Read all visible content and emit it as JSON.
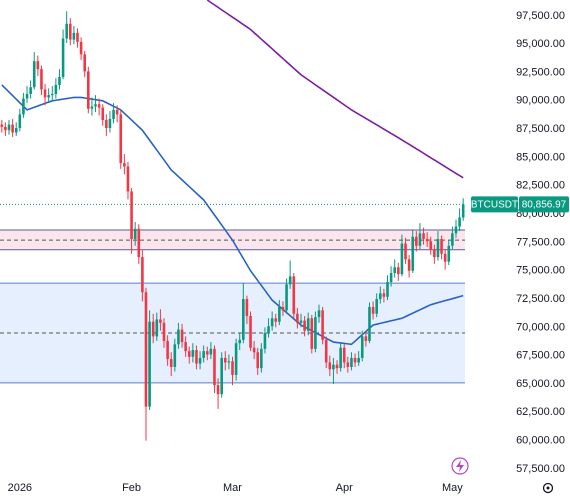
{
  "chart_data": {
    "type": "candlestick",
    "categories": [
      null,
      null,
      null,
      null,
      null,
      "2026",
      null,
      null,
      null,
      null,
      null,
      null,
      null,
      null,
      null,
      null,
      null,
      null,
      null,
      null,
      null,
      null,
      null,
      null,
      null,
      null,
      null,
      null,
      null,
      null,
      null,
      null,
      null,
      null,
      null,
      null,
      "Feb",
      null,
      null,
      null,
      null,
      null,
      null,
      null,
      null,
      null,
      null,
      null,
      null,
      null,
      null,
      null,
      null,
      null,
      null,
      null,
      null,
      null,
      null,
      null,
      null,
      null,
      null,
      null,
      "Mar",
      null,
      null,
      null,
      null,
      null,
      null,
      null,
      null,
      null,
      null,
      null,
      null,
      null,
      null,
      null,
      null,
      null,
      null,
      null,
      null,
      null,
      null,
      null,
      null,
      null,
      null,
      null,
      null,
      null,
      null,
      "Apr",
      null,
      null,
      null,
      null,
      null,
      null,
      null,
      null,
      null,
      null,
      null,
      null,
      null,
      null,
      null,
      null,
      null,
      null,
      null,
      null,
      null,
      null,
      null,
      null,
      null,
      null,
      null,
      null,
      null,
      "May",
      null,
      null,
      null
    ],
    "open": [
      87900,
      87700,
      87400,
      87900,
      87200,
      87600,
      88800,
      90200,
      90600,
      91200,
      93500,
      92800,
      91000,
      90300,
      90500,
      90600,
      91400,
      92100,
      95500,
      96800,
      95400,
      96000,
      95200,
      94100,
      92600,
      89300,
      89500,
      89700,
      89400,
      88300,
      87600,
      88400,
      89200,
      88800,
      84500,
      84200,
      82000,
      77800,
      78700,
      76200,
      73100,
      63000,
      70500,
      69200,
      70700,
      70400,
      68800,
      67200,
      66500,
      68500,
      69800,
      68700,
      67900,
      67400,
      68000,
      66800,
      67300,
      67900,
      67600,
      68100,
      64900,
      64100,
      67300,
      66900,
      67000,
      65800,
      68600,
      68900,
      72500,
      71000,
      68200,
      67800,
      66400,
      68100,
      69500,
      70100,
      70800,
      70500,
      71800,
      71500,
      73800,
      74500,
      71200,
      70400,
      70600,
      69700,
      70800,
      68100,
      70900,
      71500,
      68900,
      66900,
      66300,
      66700,
      66400,
      68200,
      66900,
      66500,
      67300,
      66900,
      67300,
      69200,
      68800,
      71800,
      71200,
      72500,
      73000,
      72700,
      74000,
      74800,
      75300,
      74700,
      77400,
      76000,
      75000,
      78000,
      77200,
      78300,
      77800,
      77600,
      76900,
      76200,
      77800,
      76500,
      75800,
      77200,
      78300,
      78900,
      79700
    ],
    "high": [
      88300,
      88100,
      88300,
      88400,
      88100,
      89300,
      90700,
      91300,
      91800,
      94300,
      94000,
      93100,
      91500,
      91100,
      91300,
      92000,
      92800,
      96300,
      97900,
      97300,
      96600,
      96400,
      95600,
      94400,
      93000,
      90300,
      90500,
      90200,
      89700,
      88800,
      89100,
      89800,
      89600,
      89100,
      85300,
      84600,
      82300,
      79300,
      79100,
      76800,
      73500,
      71500,
      71200,
      71300,
      71600,
      70800,
      69300,
      67800,
      69000,
      70400,
      70300,
      69200,
      68300,
      68600,
      68400,
      67900,
      68400,
      68300,
      68700,
      68400,
      65500,
      67800,
      67900,
      67600,
      67400,
      69000,
      69500,
      73900,
      72800,
      71400,
      68800,
      68200,
      68600,
      70000,
      70800,
      71400,
      71200,
      72400,
      72300,
      74300,
      75900,
      74800,
      71700,
      71200,
      71000,
      71300,
      71100,
      71400,
      72000,
      71800,
      69200,
      67500,
      67300,
      67100,
      68700,
      68500,
      67400,
      67800,
      67700,
      67900,
      69700,
      69600,
      72200,
      72300,
      73000,
      73600,
      73400,
      74600,
      75400,
      76000,
      75700,
      78200,
      77900,
      76400,
      78600,
      78500,
      79200,
      78800,
      78400,
      78000,
      77300,
      78500,
      78100,
      76900,
      77700,
      78900,
      79500,
      80500,
      81400
    ],
    "low": [
      87200,
      86900,
      87000,
      86800,
      86900,
      87300,
      88500,
      89800,
      90200,
      91000,
      92200,
      90500,
      89600,
      89800,
      90000,
      90200,
      91000,
      91900,
      95100,
      94900,
      95000,
      94700,
      93600,
      92100,
      88900,
      88700,
      89000,
      88700,
      87800,
      86900,
      87200,
      88000,
      88100,
      84000,
      83500,
      81300,
      76500,
      77200,
      75600,
      72300,
      60000,
      62700,
      68600,
      68800,
      69700,
      68200,
      66600,
      65700,
      66100,
      68100,
      68200,
      67400,
      66800,
      66900,
      66300,
      66300,
      66900,
      67100,
      67200,
      64200,
      62800,
      63800,
      66200,
      66300,
      64900,
      65300,
      68000,
      68600,
      70300,
      67900,
      67200,
      65800,
      66000,
      67700,
      69100,
      69700,
      70000,
      70200,
      71000,
      71200,
      73400,
      70800,
      69900,
      70000,
      69200,
      69300,
      67700,
      67800,
      70400,
      68500,
      66400,
      65700,
      65000,
      65900,
      66100,
      66400,
      66000,
      66200,
      66500,
      66600,
      67000,
      68300,
      68600,
      70700,
      70900,
      72100,
      72200,
      72400,
      73600,
      74400,
      74100,
      74500,
      75600,
      74400,
      74800,
      76700,
      76900,
      77300,
      77100,
      76400,
      75600,
      75900,
      76000,
      75100,
      75500,
      76900,
      77900,
      78500,
      79400
    ],
    "close": [
      87700,
      87400,
      87900,
      87200,
      87600,
      88800,
      90200,
      90600,
      91200,
      93500,
      92800,
      91000,
      90300,
      90500,
      90600,
      91400,
      92100,
      95500,
      96800,
      95400,
      96000,
      95200,
      94100,
      92600,
      89300,
      89500,
      89700,
      89400,
      88300,
      87600,
      88400,
      89200,
      88800,
      84500,
      84200,
      82000,
      77800,
      78700,
      76200,
      73100,
      63000,
      70500,
      69200,
      70700,
      70400,
      68800,
      67200,
      66500,
      68500,
      69800,
      68700,
      67900,
      67400,
      68000,
      66800,
      67300,
      67900,
      67600,
      68100,
      64900,
      64100,
      67300,
      66900,
      67000,
      65800,
      68600,
      68900,
      72500,
      71000,
      68200,
      67800,
      66400,
      68100,
      69500,
      70100,
      70800,
      70500,
      71800,
      71500,
      73800,
      74500,
      71200,
      70400,
      70600,
      69700,
      70800,
      68100,
      70900,
      71500,
      68900,
      66900,
      66300,
      66700,
      66400,
      68200,
      66900,
      66500,
      67300,
      66900,
      67300,
      69200,
      68800,
      71800,
      71200,
      72500,
      73000,
      72700,
      74000,
      74800,
      75300,
      74700,
      77400,
      76000,
      75000,
      78000,
      77200,
      78300,
      77800,
      77600,
      76900,
      76200,
      77800,
      76500,
      75800,
      77200,
      78300,
      78900,
      79700,
      80856.97
    ],
    "up_color": "#089981",
    "down_color": "#f23645",
    "moving_averages": [
      {
        "color": "#2962c4",
        "values": [
          91400,
          91090,
          90770,
          90460,
          90140,
          89830,
          89510,
          89200,
          89310,
          89430,
          89540,
          89660,
          89770,
          89890,
          90000,
          90050,
          90100,
          90150,
          90200,
          90250,
          90300,
          90300,
          90300,
          90250,
          90200,
          90150,
          90100,
          90050,
          90000,
          89840,
          89680,
          89520,
          89360,
          89200,
          88900,
          88600,
          88300,
          88000,
          87700,
          87400,
          86960,
          86530,
          86090,
          85650,
          85210,
          84780,
          84340,
          83900,
          83610,
          83310,
          83020,
          82720,
          82430,
          82130,
          81840,
          81540,
          81250,
          80810,
          80360,
          79920,
          79480,
          79030,
          78590,
          78140,
          77700,
          77160,
          76620,
          76080,
          75540,
          75000,
          74570,
          74130,
          73700,
          73270,
          72830,
          72400,
          72130,
          71850,
          71580,
          71300,
          71030,
          70750,
          70480,
          70200,
          70030,
          69870,
          69700,
          69530,
          69370,
          69200,
          69030,
          68870,
          68700,
          68660,
          68620,
          68580,
          68540,
          68500,
          68780,
          69070,
          69350,
          69630,
          69920,
          70200,
          70280,
          70350,
          70430,
          70500,
          70580,
          70650,
          70730,
          70800,
          70950,
          71100,
          71250,
          71400,
          71550,
          71700,
          71850,
          72000,
          72090,
          72180,
          72270,
          72360,
          72440,
          72530,
          72620,
          72710,
          72800
        ]
      },
      {
        "color": "#7b1fa2",
        "values": [
          null,
          null,
          null,
          null,
          null,
          null,
          null,
          null,
          null,
          null,
          null,
          null,
          null,
          null,
          null,
          null,
          null,
          null,
          null,
          null,
          null,
          null,
          null,
          null,
          null,
          null,
          null,
          null,
          null,
          null,
          null,
          null,
          null,
          null,
          null,
          null,
          null,
          null,
          null,
          null,
          null,
          null,
          null,
          null,
          null,
          null,
          null,
          null,
          null,
          null,
          null,
          null,
          null,
          null,
          null,
          null,
          null,
          98900,
          98680,
          98470,
          98250,
          98030,
          97820,
          97600,
          97380,
          97170,
          96950,
          96730,
          96520,
          96300,
          96010,
          95730,
          95440,
          95160,
          94870,
          94590,
          94300,
          94010,
          93730,
          93440,
          93160,
          92870,
          92590,
          92300,
          92080,
          91860,
          91640,
          91410,
          91190,
          90970,
          90750,
          90530,
          90310,
          90090,
          89860,
          89640,
          89420,
          89200,
          89010,
          88820,
          88630,
          88440,
          88260,
          88070,
          87880,
          87690,
          87500,
          87310,
          87120,
          86930,
          86740,
          86550,
          86350,
          86160,
          85960,
          85760,
          85570,
          85370,
          85170,
          84970,
          84780,
          84580,
          84380,
          84180,
          83990,
          83790,
          83590,
          83400,
          83200
        ]
      }
    ],
    "zones": [
      {
        "from": 76850,
        "to": 78600,
        "mid": 77700,
        "fill": "#fbe6ee",
        "line": "#5c5a9e"
      },
      {
        "from": 65100,
        "to": 73900,
        "mid": 69500,
        "fill": "#e5effd",
        "line": "#5a7fd0"
      }
    ],
    "last_price": {
      "symbol": "BTCUSDT",
      "value": 80856.97,
      "label": "80,856.97",
      "color": "#089981"
    },
    "ylim": [
      56700,
      98900
    ],
    "yticks": [
      {
        "value": 57500,
        "label": "57,500.00"
      },
      {
        "value": 60000,
        "label": "60,000.00"
      },
      {
        "value": 62500,
        "label": "62,500.00"
      },
      {
        "value": 65000,
        "label": "65,000.00"
      },
      {
        "value": 67500,
        "label": "67,500.00"
      },
      {
        "value": 70000,
        "label": "70,000.00"
      },
      {
        "value": 72500,
        "label": "72,500.00"
      },
      {
        "value": 75000,
        "label": "75,000.00"
      },
      {
        "value": 77500,
        "label": "77,500.00"
      },
      {
        "value": 80000,
        "label": "80,000.00"
      },
      {
        "value": 82500,
        "label": "82,500.00"
      },
      {
        "value": 85000,
        "label": "85,000.00"
      },
      {
        "value": 87500,
        "label": "87,500.00"
      },
      {
        "value": 90000,
        "label": "90,000.00"
      },
      {
        "value": 92500,
        "label": "92,500.00"
      },
      {
        "value": 95000,
        "label": "95,000.00"
      },
      {
        "value": 97500,
        "label": "97,500.00"
      }
    ]
  }
}
